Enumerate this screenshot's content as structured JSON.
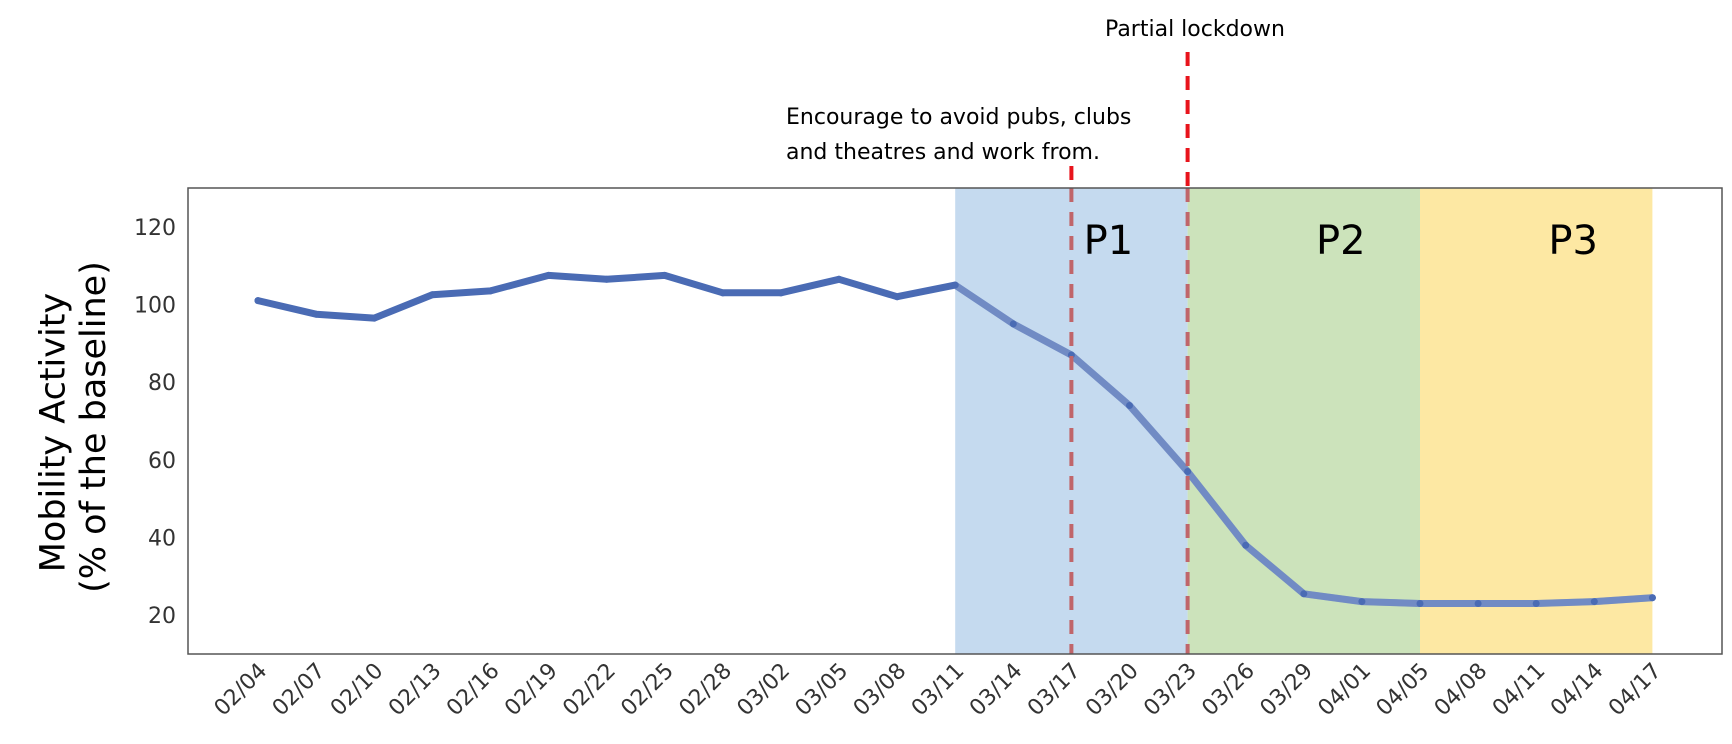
{
  "chart_data": {
    "type": "line",
    "categories": [
      "02/04",
      "02/07",
      "02/10",
      "02/13",
      "02/16",
      "02/19",
      "02/22",
      "02/25",
      "02/28",
      "03/02",
      "03/05",
      "03/08",
      "03/11",
      "03/14",
      "03/17",
      "03/20",
      "03/23",
      "03/26",
      "03/29",
      "04/01",
      "04/05",
      "04/08",
      "04/11",
      "04/14",
      "04/17"
    ],
    "values": [
      101,
      97.5,
      96.5,
      102.5,
      103.5,
      107.5,
      106.5,
      107.5,
      103,
      103,
      106.5,
      102,
      105,
      95,
      87,
      74,
      57,
      38,
      25.5,
      23.5,
      23,
      23,
      23,
      23.5,
      24.5
    ],
    "ylabel_line1": "Mobility Activity",
    "ylabel_line2": "(% of the baseline)",
    "yticks": [
      20,
      40,
      60,
      80,
      100,
      120
    ],
    "ylim": [
      10,
      130
    ],
    "grid": false,
    "line_color": "#4a6bb4",
    "phases": [
      {
        "label": "P1",
        "start": "03/11",
        "end": "03/23",
        "color": "#c5daef"
      },
      {
        "label": "P2",
        "start": "03/23",
        "end": "04/05",
        "color": "#cce3bb"
      },
      {
        "label": "P3",
        "start": "04/05",
        "end": "04/17",
        "color": "#fde8a3"
      }
    ],
    "annotations": [
      {
        "text_line1": "Encourage to avoid pubs, clubs",
        "text_line2": "and theatres and work from.",
        "at": "03/17",
        "color": "#e8141c"
      },
      {
        "text_line1": "Partial lockdown",
        "text_line2": "",
        "at": "03/23",
        "color": "#e8141c"
      }
    ]
  }
}
